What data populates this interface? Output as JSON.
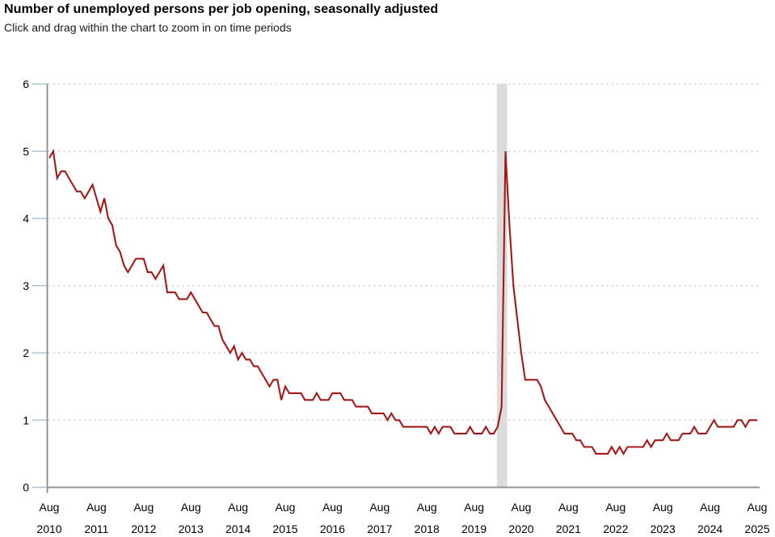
{
  "header": {
    "title": "Number of unemployed persons per job opening, seasonally adjusted",
    "subtitle": "Click and drag within the chart to zoom in on time periods"
  },
  "chart_data": {
    "type": "line",
    "title": "Number of unemployed persons per job opening, seasonally adjusted",
    "frequency": "monthly",
    "x_start": "Aug 2010",
    "x_end": "Aug 2025",
    "x_tick_month": "Aug",
    "x_tick_years": [
      "2010",
      "2011",
      "2012",
      "2013",
      "2014",
      "2015",
      "2016",
      "2017",
      "2018",
      "2019",
      "2020",
      "2021",
      "2022",
      "2023",
      "2024",
      "2025"
    ],
    "ylim": [
      0,
      6
    ],
    "y_ticks": [
      0,
      1,
      2,
      3,
      4,
      5,
      6
    ],
    "grid": "dotted horizontal gridlines",
    "legend": "none",
    "line_color": "#a31919",
    "axis_color": "#8f8f8f",
    "grid_color": "#c8c8c8",
    "tick_color": "#aec5d6",
    "recession_band": {
      "from": "Feb 2020",
      "to": "Apr 2020",
      "color": "#dcdcdc"
    },
    "series": [
      {
        "name": "Unemployed persons per job opening (seasonally adjusted)",
        "values": [
          4.9,
          5.0,
          4.6,
          4.7,
          4.7,
          4.6,
          4.5,
          4.4,
          4.4,
          4.3,
          4.4,
          4.5,
          4.3,
          4.1,
          4.3,
          4.0,
          3.9,
          3.6,
          3.5,
          3.3,
          3.2,
          3.3,
          3.4,
          3.4,
          3.4,
          3.2,
          3.2,
          3.1,
          3.2,
          3.3,
          2.9,
          2.9,
          2.9,
          2.8,
          2.8,
          2.8,
          2.9,
          2.8,
          2.7,
          2.6,
          2.6,
          2.5,
          2.4,
          2.4,
          2.2,
          2.1,
          2.0,
          2.1,
          1.9,
          2.0,
          1.9,
          1.9,
          1.8,
          1.8,
          1.7,
          1.6,
          1.5,
          1.6,
          1.6,
          1.3,
          1.5,
          1.4,
          1.4,
          1.4,
          1.4,
          1.3,
          1.3,
          1.3,
          1.4,
          1.3,
          1.3,
          1.3,
          1.4,
          1.4,
          1.4,
          1.3,
          1.3,
          1.3,
          1.2,
          1.2,
          1.2,
          1.2,
          1.1,
          1.1,
          1.1,
          1.1,
          1.0,
          1.1,
          1.0,
          1.0,
          0.9,
          0.9,
          0.9,
          0.9,
          0.9,
          0.9,
          0.9,
          0.8,
          0.9,
          0.8,
          0.9,
          0.9,
          0.9,
          0.8,
          0.8,
          0.8,
          0.8,
          0.9,
          0.8,
          0.8,
          0.8,
          0.9,
          0.8,
          0.8,
          0.9,
          1.2,
          5.0,
          3.9,
          3.0,
          2.5,
          2.0,
          1.6,
          1.6,
          1.6,
          1.6,
          1.5,
          1.3,
          1.2,
          1.1,
          1.0,
          0.9,
          0.8,
          0.8,
          0.8,
          0.7,
          0.7,
          0.6,
          0.6,
          0.6,
          0.5,
          0.5,
          0.5,
          0.5,
          0.6,
          0.5,
          0.6,
          0.5,
          0.6,
          0.6,
          0.6,
          0.6,
          0.6,
          0.7,
          0.6,
          0.7,
          0.7,
          0.7,
          0.8,
          0.7,
          0.7,
          0.7,
          0.8,
          0.8,
          0.8,
          0.9,
          0.8,
          0.8,
          0.8,
          0.9,
          1.0,
          0.9,
          0.9,
          0.9,
          0.9,
          0.9,
          1.0,
          1.0,
          0.9,
          1.0,
          1.0,
          1.0
        ]
      }
    ]
  }
}
